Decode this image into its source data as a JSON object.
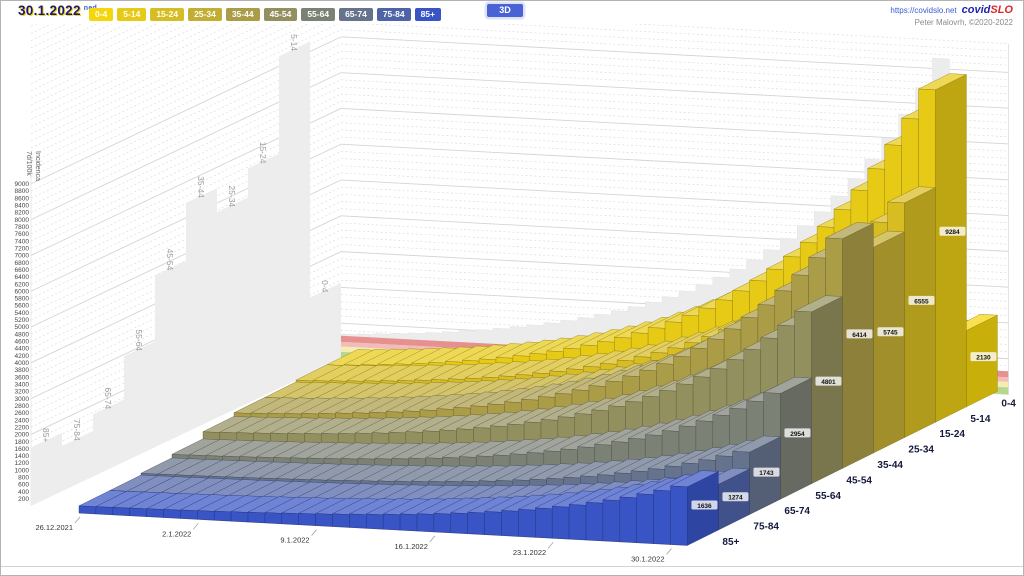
{
  "header": {
    "date_label": "30.1.2022",
    "weekday_abbrev": "ned",
    "mode_button_label": "3D",
    "site_link": "https://covidslo.net",
    "brand_covid": "covid",
    "brand_slo": "SLO",
    "credit_line": "Peter Malovrh, ©2020-2022",
    "age_group_buttons": [
      {
        "label": "0-4",
        "color": "#F5D50C"
      },
      {
        "label": "5-14",
        "color": "#E7CA15"
      },
      {
        "label": "15-24",
        "color": "#D7BD22"
      },
      {
        "label": "25-34",
        "color": "#C3AE33"
      },
      {
        "label": "35-44",
        "color": "#AB9C48"
      },
      {
        "label": "45-54",
        "color": "#93905F"
      },
      {
        "label": "55-64",
        "color": "#7C8176"
      },
      {
        "label": "65-74",
        "color": "#66738D"
      },
      {
        "label": "75-84",
        "color": "#4F63A7"
      },
      {
        "label": "85+",
        "color": "#3954C5"
      }
    ]
  },
  "chart_data": {
    "type": "bar",
    "projection": "3d-columns",
    "title": "Incidenca 7d/100k",
    "ylabel_line1": "Incidenca",
    "ylabel_line2": "7d/100k",
    "ylim": [
      0,
      9800
    ],
    "y_tick_step": 200,
    "y_label_max": 9000,
    "grid": true,
    "legend_position": "top",
    "n_days": 36,
    "x_first_date": "26.12.2021",
    "x_last_date": "30.1.2022",
    "x_ticks": [
      {
        "label": "26.12.2021",
        "day_index": 0
      },
      {
        "label": "2.1.2022",
        "day_index": 7
      },
      {
        "label": "9.1.2022",
        "day_index": 14
      },
      {
        "label": "16.1.2022",
        "day_index": 21
      },
      {
        "label": "23.1.2022",
        "day_index": 28
      },
      {
        "label": "30.1.2022",
        "day_index": 35
      }
    ],
    "threshold_bands": [
      {
        "from": 480,
        "to": 650,
        "color": "#e79090"
      },
      {
        "from": 350,
        "to": 480,
        "color": "#f2bcb8"
      },
      {
        "from": 200,
        "to": 350,
        "color": "#f3edb4"
      },
      {
        "from": 0,
        "to": 200,
        "color": "#b7d78f"
      }
    ],
    "depth_order_note": "series listed back row (0-4) first to front row (85+) last",
    "series": [
      {
        "name": "0-4",
        "color": "#F5D50C",
        "final_value": 2130,
        "values": [
          250,
          256,
          263,
          270,
          279,
          288,
          298,
          309,
          322,
          335,
          351,
          367,
          386,
          406,
          429,
          454,
          481,
          512,
          546,
          583,
          624,
          670,
          720,
          775,
          837,
          905,
          980,
          1063,
          1154,
          1255,
          1367,
          1491,
          1628,
          1779,
          1946,
          2130
        ]
      },
      {
        "name": "5-14",
        "color": "#E7CA15",
        "final_value": 9284,
        "values": [
          700,
          728,
          759,
          794,
          832,
          873,
          920,
          971,
          1028,
          1090,
          1159,
          1236,
          1320,
          1414,
          1517,
          1631,
          1757,
          1896,
          2050,
          2220,
          2408,
          2616,
          2845,
          3099,
          3379,
          3689,
          4032,
          4410,
          4828,
          5290,
          5802,
          6366,
          6991,
          7680,
          8442,
          9284
        ]
      },
      {
        "name": "15-24",
        "color": "#D7BD22",
        "final_value": 6555,
        "values": [
          700,
          719,
          740,
          764,
          790,
          818,
          850,
          885,
          923,
          966,
          1013,
          1065,
          1123,
          1187,
          1257,
          1335,
          1421,
          1516,
          1621,
          1737,
          1865,
          2006,
          2163,
          2336,
          2527,
          2739,
          2972,
          3230,
          3516,
          3831,
          4180,
          4565,
          4990,
          5461,
          5981,
          6555
        ]
      },
      {
        "name": "25-34",
        "color": "#C3AE33",
        "final_value": 5745,
        "values": [
          650,
          667,
          685,
          706,
          728,
          753,
          780,
          811,
          844,
          882,
          923,
          968,
          1018,
          1074,
          1135,
          1202,
          1277,
          1360,
          1451,
          1552,
          1664,
          1787,
          1923,
          2074,
          2240,
          2424,
          2627,
          2852,
          3100,
          3374,
          3678,
          4013,
          4384,
          4793,
          5245,
          5745
        ]
      },
      {
        "name": "35-44",
        "color": "#AB9C48",
        "final_value": 6414,
        "values": [
          650,
          669,
          690,
          713,
          738,
          766,
          798,
          832,
          870,
          912,
          958,
          1010,
          1066,
          1129,
          1198,
          1275,
          1360,
          1453,
          1556,
          1671,
          1797,
          1936,
          2090,
          2261,
          2449,
          2657,
          2887,
          3141,
          3422,
          3732,
          4076,
          4455,
          4874,
          5337,
          5849,
          6414
        ]
      },
      {
        "name": "45-54",
        "color": "#93905F",
        "final_value": 4801,
        "values": [
          550,
          564,
          579,
          596,
          615,
          636,
          659,
          684,
          712,
          743,
          777,
          815,
          857,
          903,
          954,
          1011,
          1073,
          1142,
          1218,
          1303,
          1396,
          1499,
          1612,
          1738,
          1877,
          2030,
          2200,
          2387,
          2594,
          2823,
          3076,
          3356,
          3665,
          4007,
          4384,
          4801
        ]
      },
      {
        "name": "55-64",
        "color": "#7C8176",
        "final_value": 2954,
        "values": [
          350,
          359,
          368,
          378,
          390,
          403,
          417,
          432,
          449,
          468,
          489,
          513,
          538,
          566,
          598,
          632,
          671,
          713,
          759,
          811,
          868,
          931,
          1001,
          1078,
          1163,
          1257,
          1361,
          1475,
          1602,
          1742,
          1898,
          2069,
          2258,
          2467,
          2698,
          2954
        ]
      },
      {
        "name": "65-74",
        "color": "#66738D",
        "final_value": 1743,
        "values": [
          250,
          255,
          260,
          266,
          273,
          280,
          288,
          297,
          307,
          318,
          330,
          343,
          358,
          374,
          392,
          412,
          434,
          458,
          485,
          514,
          547,
          583,
          623,
          667,
          716,
          770,
          829,
          895,
          968,
          1048,
          1137,
          1236,
          1344,
          1464,
          1597,
          1743
        ]
      },
      {
        "name": "75-84",
        "color": "#4F63A7",
        "final_value": 1274,
        "values": [
          200,
          204,
          207,
          212,
          216,
          222,
          227,
          234,
          241,
          249,
          257,
          267,
          278,
          289,
          302,
          316,
          332,
          350,
          369,
          390,
          414,
          440,
          468,
          500,
          535,
          574,
          617,
          664,
          717,
          774,
          838,
          909,
          987,
          1073,
          1169,
          1274
        ]
      },
      {
        "name": "85+",
        "color": "#3954C5",
        "final_value": 1636,
        "values": [
          200,
          205,
          210,
          216,
          222,
          229,
          237,
          245,
          255,
          265,
          277,
          290,
          304,
          319,
          337,
          356,
          377,
          400,
          426,
          454,
          486,
          520,
          559,
          601,
          648,
          700,
          757,
          821,
          891,
          968,
          1053,
          1148,
          1252,
          1368,
          1495,
          1636
        ]
      }
    ]
  }
}
